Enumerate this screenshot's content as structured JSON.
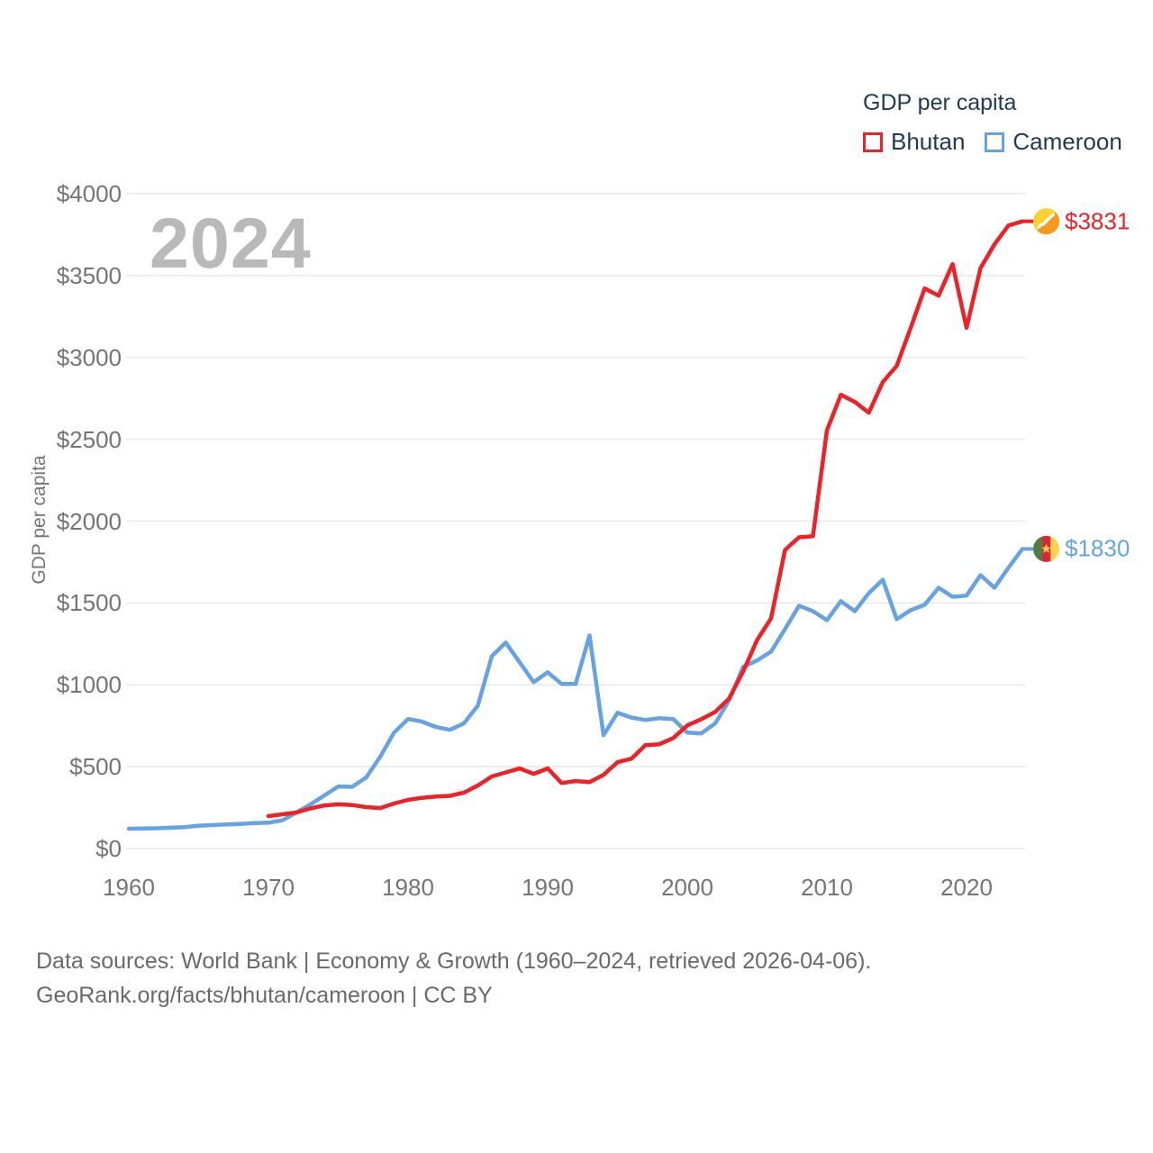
{
  "legend": {
    "title": "GDP per capita",
    "items": [
      {
        "label": "Bhutan",
        "color": "#ee2127"
      },
      {
        "label": "Cameroon",
        "color": "#66a3e3"
      }
    ]
  },
  "watermark": "2024",
  "y_axis": {
    "title": "GDP per capita",
    "ticks": [
      "$0",
      "$500",
      "$1000",
      "$1500",
      "$2000",
      "$2500",
      "$3000",
      "$3500",
      "$4000"
    ]
  },
  "x_axis": {
    "ticks": [
      "1960",
      "1970",
      "1980",
      "1990",
      "2000",
      "2010",
      "2020"
    ]
  },
  "end_labels": [
    {
      "series": "Bhutan",
      "value": "$3831",
      "color": "#ee2127",
      "flag": "bhutan"
    },
    {
      "series": "Cameroon",
      "value": "$1830",
      "color": "#66a3e3",
      "flag": "cameroon"
    }
  ],
  "footer": {
    "line1": "Data sources: World Bank | Economy & Growth (1960–2024, retrieved 2026-04-06).",
    "line2": "GeoRank.org/facts/bhutan/cameroon | CC BY"
  },
  "chart_data": {
    "type": "line",
    "title": "GDP per capita",
    "ylabel": "GDP per capita",
    "ylim": [
      0,
      4000
    ],
    "xlim": [
      1960,
      2024
    ],
    "grid": true,
    "legend_position": "top-right",
    "gridline_step": 500,
    "series": [
      {
        "name": "Bhutan",
        "color": "#ee2127",
        "start_year": 1970,
        "end_value_label": "$3831",
        "values": [
          198,
          209,
          220,
          245,
          263,
          270,
          266,
          253,
          247,
          275,
          297,
          310,
          318,
          322,
          341,
          385,
          440,
          465,
          489,
          456,
          489,
          400,
          412,
          406,
          450,
          527,
          549,
          631,
          637,
          675,
          752,
          790,
          834,
          917,
          1081,
          1274,
          1406,
          1824,
          1901,
          1908,
          2554,
          2772,
          2728,
          2662,
          2849,
          2948,
          3180,
          3421,
          3377,
          3570,
          3180,
          3545,
          3690,
          3805,
          3831
        ]
      },
      {
        "name": "Cameroon",
        "color": "#66a3e3",
        "start_year": 1960,
        "end_value_label": "$1830",
        "values": [
          121,
          122,
          124,
          127,
          131,
          140,
          143,
          147,
          151,
          155,
          158,
          172,
          220,
          269,
          324,
          379,
          377,
          434,
          560,
          708,
          791,
          775,
          742,
          725,
          764,
          873,
          1175,
          1258,
          1137,
          1016,
          1077,
          1005,
          1005,
          1302,
          692,
          829,
          800,
          785,
          796,
          790,
          708,
          703,
          764,
          906,
          1110,
          1149,
          1203,
          1341,
          1483,
          1450,
          1395,
          1511,
          1450,
          1560,
          1642,
          1401,
          1456,
          1489,
          1593,
          1538,
          1545,
          1670,
          1593,
          1715,
          1830
        ]
      }
    ],
    "flag_colors": {
      "bhutan": {
        "yellow": "#fdd02c",
        "orange": "#f9981d",
        "dragon": "#ffffff"
      },
      "cameroon": {
        "green": "#4c8040",
        "red": "#d52b39",
        "yellow": "#fdd24f",
        "star": "#fdd24f"
      }
    },
    "gridline_color": "#e9e9e9",
    "tick_color": "#757575"
  }
}
